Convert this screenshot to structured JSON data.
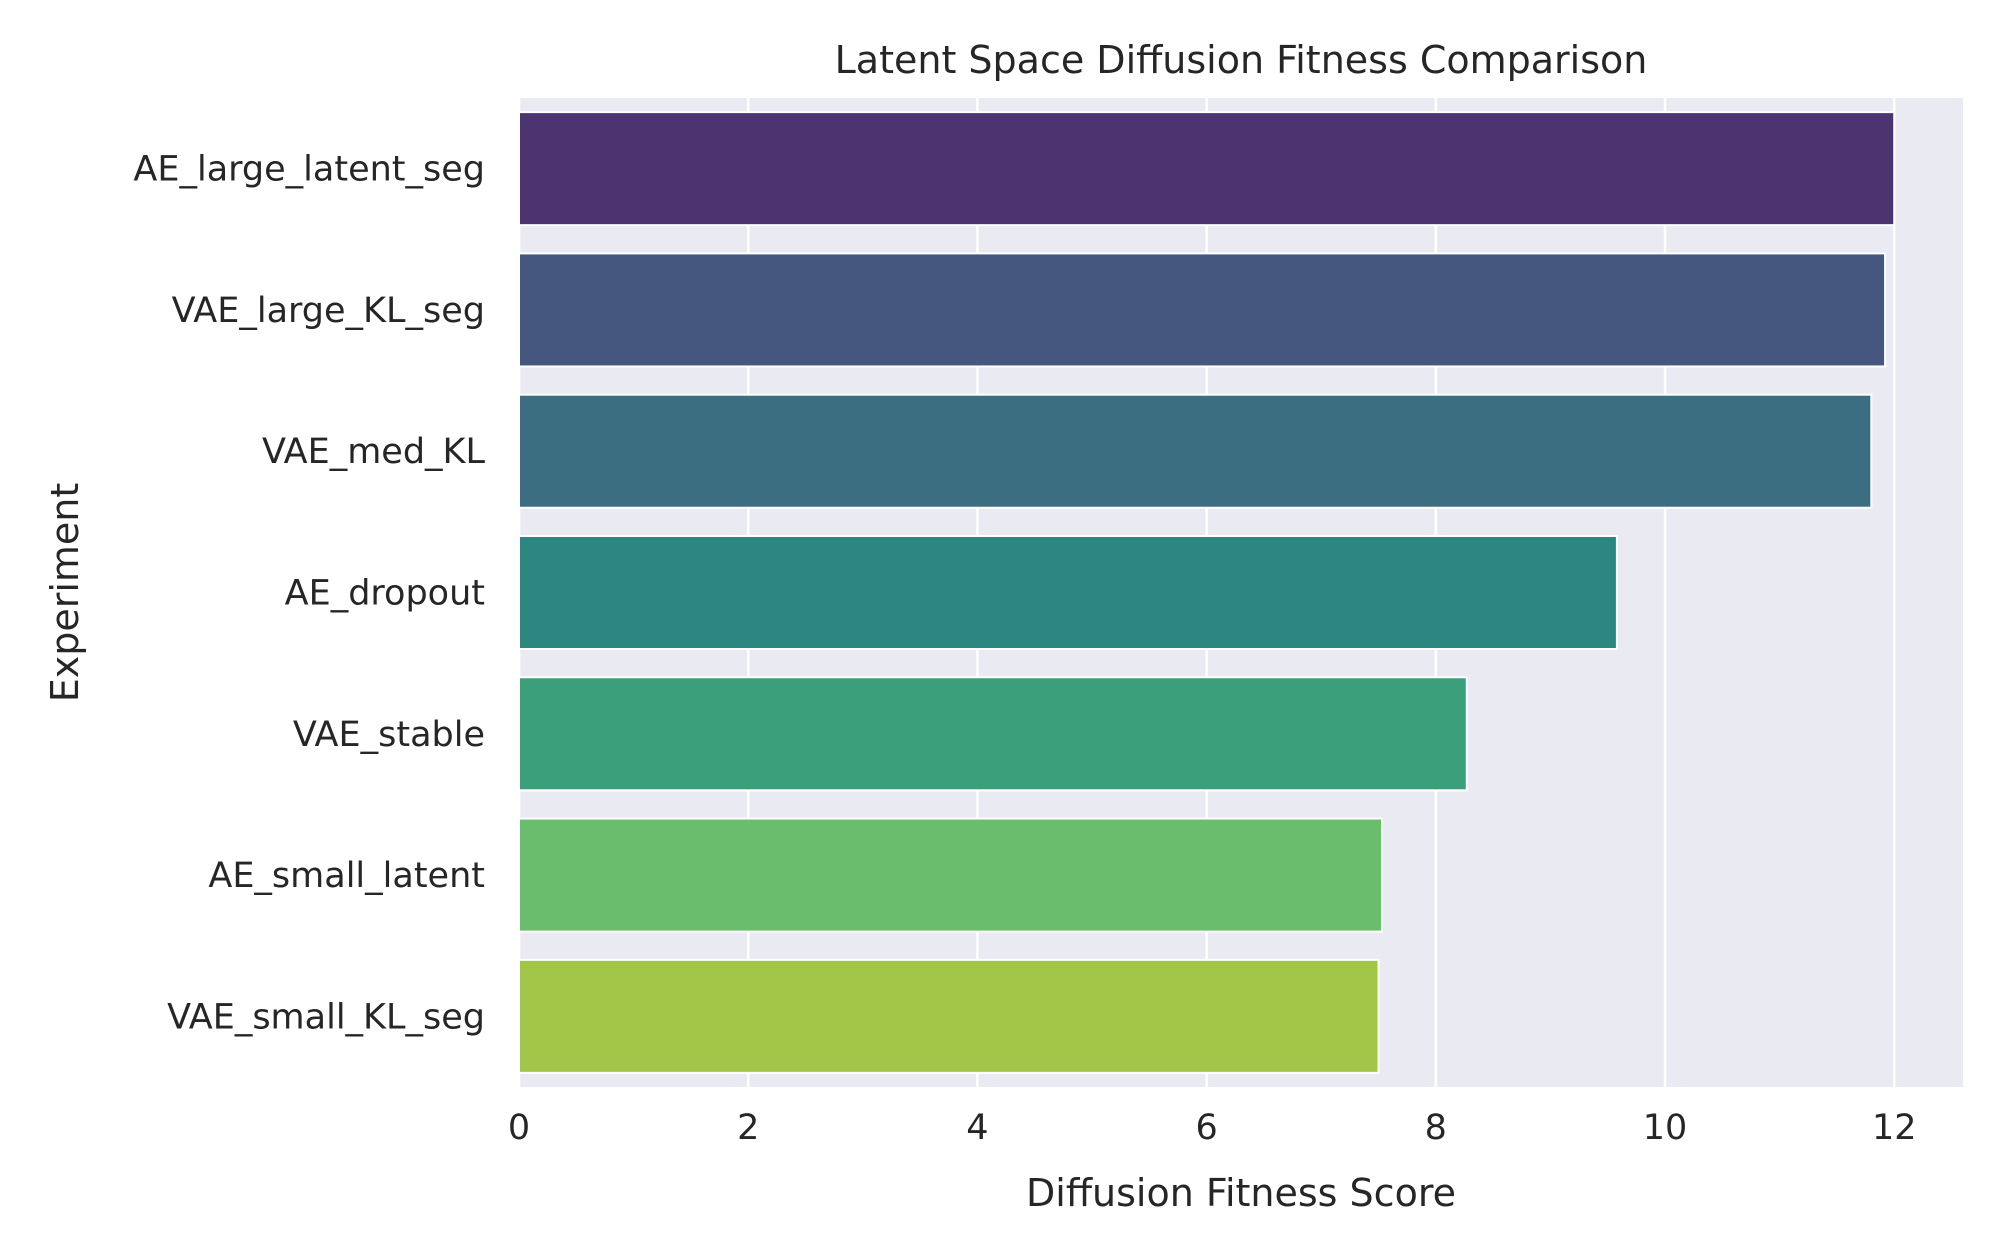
{
  "chart_data": {
    "type": "bar",
    "orientation": "horizontal",
    "title": "Latent Space Diffusion Fitness Comparison",
    "xlabel": "Diffusion Fitness Score",
    "ylabel": "Experiment",
    "xlim": [
      0,
      12.6
    ],
    "xticks": [
      0,
      2,
      4,
      6,
      8,
      10,
      12
    ],
    "grid": true,
    "legend": "none",
    "categories": [
      "AE_large_latent_seg",
      "VAE_large_KL_seg",
      "VAE_med_KL",
      "AE_dropout",
      "VAE_stable",
      "AE_small_latent",
      "VAE_small_KL_seg"
    ],
    "values": [
      12.0,
      11.92,
      11.8,
      9.58,
      8.27,
      7.53,
      7.5
    ],
    "colors": [
      "#4c3471",
      "#46577f",
      "#3b6e80",
      "#2e8680",
      "#3b9f7c",
      "#6abd6c",
      "#a2c748"
    ],
    "background": "#eaeaf2",
    "grid_color": "#ffffff"
  }
}
